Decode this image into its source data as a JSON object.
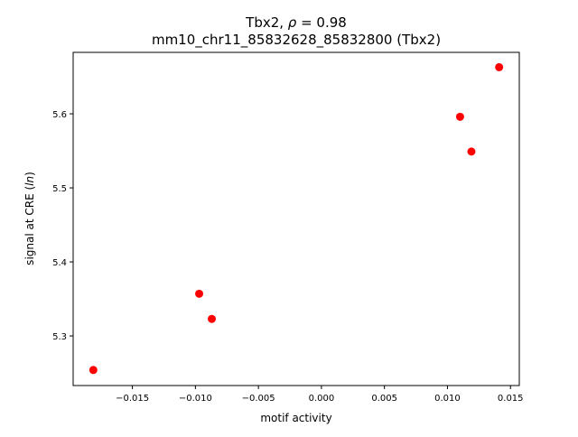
{
  "chart_data": {
    "type": "scatter",
    "title_line1": "Tbx2, ρ = 0.98",
    "title_line2": "mm10_chr11_85832628_85832800 (Tbx2)",
    "xlabel": "motif activity",
    "ylabel": "signal at CRE (ln)",
    "xlim": [
      -0.0197,
      0.0157
    ],
    "ylim": [
      5.233,
      5.683
    ],
    "xticks": [
      -0.015,
      -0.01,
      -0.005,
      0.0,
      0.005,
      0.01,
      0.015
    ],
    "xtick_labels": [
      "−0.015",
      "−0.010",
      "−0.005",
      "0.000",
      "0.005",
      "0.010",
      "0.015"
    ],
    "yticks": [
      5.3,
      5.4,
      5.5,
      5.6
    ],
    "ytick_labels": [
      "5.3",
      "5.4",
      "5.5",
      "5.6"
    ],
    "grid": false,
    "point_color": "#ff0000",
    "points": [
      {
        "x": -0.0181,
        "y": 5.254
      },
      {
        "x": -0.0097,
        "y": 5.357
      },
      {
        "x": -0.0087,
        "y": 5.323
      },
      {
        "x": 0.011,
        "y": 5.596
      },
      {
        "x": 0.0119,
        "y": 5.549
      },
      {
        "x": 0.0141,
        "y": 5.663
      }
    ]
  }
}
